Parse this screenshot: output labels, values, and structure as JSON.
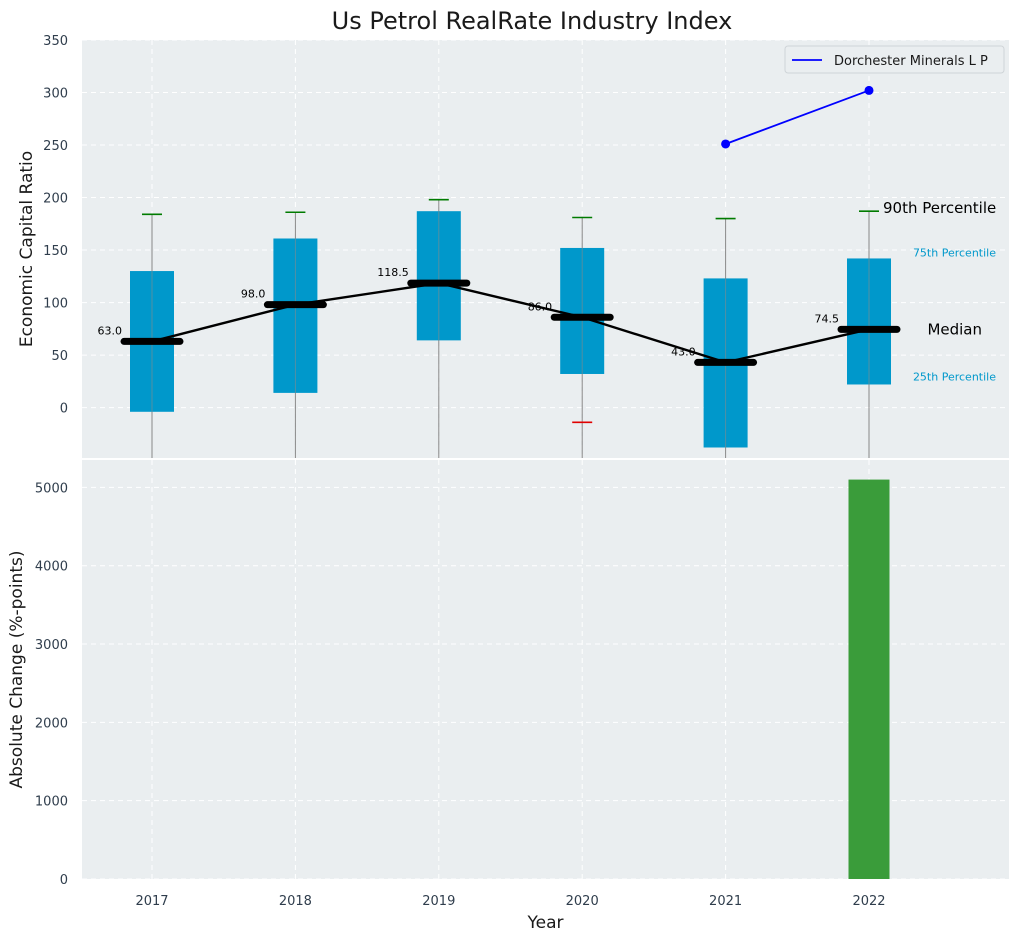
{
  "title": "Us Petrol RealRate Industry Index",
  "colors": {
    "panel_bg": "#eaeef0",
    "grid": "#ffffff",
    "box_fill": "#0098cb",
    "whisker": "#888888",
    "cap_top": "#007b00",
    "cap_bottom_outlier": "#e00000",
    "median": "#000000",
    "company_line": "#0000ff",
    "bar": "#3a9c3a",
    "pct_small": "#0098cb"
  },
  "chart_data": [
    {
      "type": "box",
      "ylabel": "Economic Capital Ratio",
      "ylim": [
        -48,
        350
      ],
      "yticks": [
        0,
        50,
        100,
        150,
        200,
        250,
        300,
        350
      ],
      "grid": true,
      "categories": [
        "2017",
        "2018",
        "2019",
        "2020",
        "2021",
        "2022"
      ],
      "boxes": [
        {
          "year": "2017",
          "p10_cap": null,
          "p25": -4,
          "median": 63.0,
          "p75": 130,
          "p90": 184,
          "median_label": "63.0"
        },
        {
          "year": "2018",
          "p10_cap": null,
          "p25": 14,
          "median": 98.0,
          "p75": 161,
          "p90": 186,
          "median_label": "98.0"
        },
        {
          "year": "2019",
          "p10_cap": null,
          "p25": 64,
          "median": 118.5,
          "p75": 187,
          "p90": 198,
          "median_label": "118.5"
        },
        {
          "year": "2020",
          "p10_cap": -14,
          "p25": 32,
          "median": 86.0,
          "p75": 152,
          "p90": 181,
          "median_label": "86.0"
        },
        {
          "year": "2021",
          "p10_cap": null,
          "p25": -38,
          "median": 43.0,
          "p75": 123,
          "p90": 180,
          "median_label": "43.0"
        },
        {
          "year": "2022",
          "p10_cap": null,
          "p25": 22,
          "median": 74.5,
          "p75": 142,
          "p90": 187,
          "median_label": "74.5"
        }
      ],
      "company_series": {
        "name": "Dorchester Minerals L P",
        "points": [
          {
            "year": "2021",
            "value": 251
          },
          {
            "year": "2022",
            "value": 302
          }
        ]
      },
      "legend": {
        "position": "top-right",
        "label": "Dorchester Minerals L P"
      },
      "annotations": {
        "p90": "90th Percentile",
        "p75": "75th Percentile",
        "median": "Median",
        "p25": "25th Percentile"
      }
    },
    {
      "type": "bar",
      "ylabel": "Absolute Change (%-points)",
      "xlabel": "Year",
      "ylim": [
        0,
        5350
      ],
      "yticks": [
        0,
        1000,
        2000,
        3000,
        4000,
        5000
      ],
      "grid": true,
      "categories": [
        "2017",
        "2018",
        "2019",
        "2020",
        "2021",
        "2022"
      ],
      "values": [
        0,
        0,
        0,
        0,
        0,
        5100
      ]
    }
  ]
}
